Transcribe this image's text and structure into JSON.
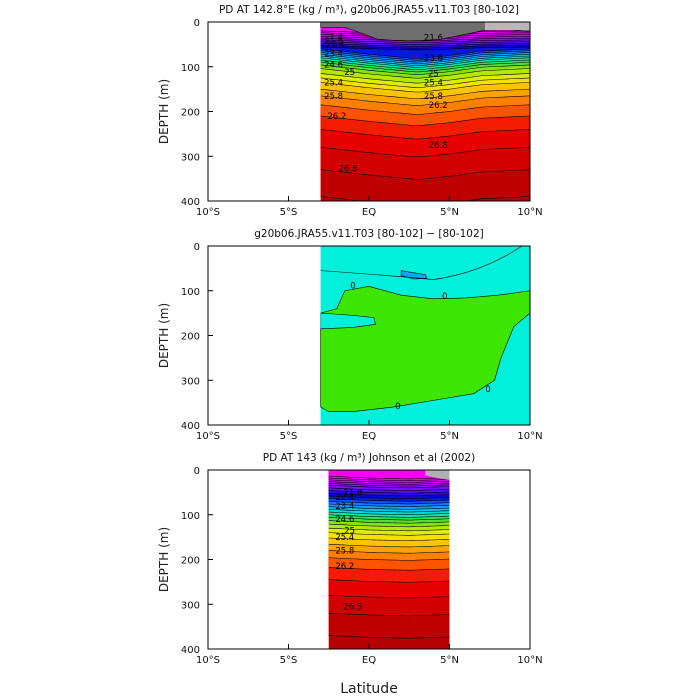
{
  "figure": {
    "xlabel": "Latitude"
  },
  "chart_data": [
    {
      "type": "contour",
      "title": "PD AT 142.8°E (kg / m³), g20b06.JRA55.v11.T03 [80-102]",
      "xlabel": "",
      "ylabel": "DEPTH (m)",
      "xlim": [
        -10,
        10
      ],
      "ylim": [
        400,
        0
      ],
      "x_ticks": [
        "10°S",
        "5°S",
        "EQ",
        "5°N",
        "10°N"
      ],
      "y_ticks": [
        "0",
        "100",
        "200",
        "300",
        "400"
      ],
      "data_extent_lat": [
        -3,
        10
      ],
      "levels": [
        21.0,
        21.2,
        21.4,
        21.6,
        21.8,
        22.0,
        22.2,
        22.4,
        22.6,
        22.8,
        23.0,
        23.2,
        23.4,
        23.6,
        23.8,
        24.0,
        24.2,
        24.4,
        24.6,
        24.8,
        25.0,
        25.2,
        25.4,
        25.6,
        25.8,
        26.0,
        26.2,
        26.4,
        26.6,
        26.8,
        27.0
      ],
      "level_depths_left": [
        20,
        24,
        28,
        32,
        36,
        40,
        44,
        48,
        52,
        56,
        60,
        64,
        68,
        72,
        76,
        80,
        85,
        90,
        96,
        104,
        115,
        125,
        135,
        150,
        165,
        185,
        210,
        240,
        280,
        330,
        390
      ],
      "dome_shift": {
        "lat": [
          -3,
          0,
          3,
          5,
          7,
          10
        ],
        "dz": [
          0,
          12,
          22,
          15,
          5,
          0
        ]
      },
      "contour_labels": [
        {
          "text": "21.4",
          "lat": -2.2,
          "depth": 35
        },
        {
          "text": "21.6",
          "lat": -2.2,
          "depth": 42
        },
        {
          "text": "22.4",
          "lat": -2.1,
          "depth": 50
        },
        {
          "text": "23.4",
          "lat": -2.2,
          "depth": 70
        },
        {
          "text": "24.6",
          "lat": -2.2,
          "depth": 95
        },
        {
          "text": "25",
          "lat": -1.2,
          "depth": 112
        },
        {
          "text": "25.4",
          "lat": -2.2,
          "depth": 135
        },
        {
          "text": "25.8",
          "lat": -2.2,
          "depth": 165
        },
        {
          "text": "26.2",
          "lat": -2.0,
          "depth": 210
        },
        {
          "text": "26.8",
          "lat": -1.3,
          "depth": 327
        },
        {
          "text": "21.6",
          "lat": 4.0,
          "depth": 35
        },
        {
          "text": "23.6",
          "lat": 4.0,
          "depth": 80
        },
        {
          "text": "25",
          "lat": 4.0,
          "depth": 115
        },
        {
          "text": "25.4",
          "lat": 4.0,
          "depth": 135
        },
        {
          "text": "25.8",
          "lat": 4.0,
          "depth": 165
        },
        {
          "text": "26.2",
          "lat": 4.3,
          "depth": 185
        },
        {
          "text": "26.8",
          "lat": 4.3,
          "depth": 275
        }
      ]
    },
    {
      "type": "contour",
      "title": "g20b06.JRA55.v11.T03 [80-102] −  [80-102]",
      "xlabel": "",
      "ylabel": "DEPTH (m)",
      "xlim": [
        -10,
        10
      ],
      "ylim": [
        400,
        0
      ],
      "x_ticks": [
        "10°S",
        "5°S",
        "EQ",
        "5°N",
        "10°N"
      ],
      "y_ticks": [
        "0",
        "100",
        "200",
        "300",
        "400"
      ],
      "data_extent_lat": [
        -3,
        10
      ],
      "background_color": "#00f0dc",
      "positive_color": "#3ce600",
      "negative_color": "#00a8f0",
      "contour_labels": [
        {
          "text": "0",
          "lat": -1.0,
          "depth": 88
        },
        {
          "text": "0",
          "lat": 4.7,
          "depth": 112
        },
        {
          "text": "0",
          "lat": 1.8,
          "depth": 358
        },
        {
          "text": "0",
          "lat": 7.4,
          "depth": 320
        }
      ]
    },
    {
      "type": "contour",
      "title": "PD AT 143 (kg / m³) Johnson et al (2002)",
      "xlabel": "",
      "ylabel": "DEPTH (m)",
      "xlim": [
        -10,
        10
      ],
      "ylim": [
        400,
        0
      ],
      "x_ticks": [
        "10°S",
        "5°S",
        "EQ",
        "5°N",
        "10°N"
      ],
      "y_ticks": [
        "0",
        "100",
        "200",
        "300",
        "400"
      ],
      "data_extent_lat": [
        -2.5,
        5
      ],
      "levels": [
        21.0,
        21.2,
        21.4,
        21.6,
        21.8,
        22.0,
        22.2,
        22.4,
        22.6,
        22.8,
        23.0,
        23.2,
        23.4,
        23.6,
        23.8,
        24.0,
        24.2,
        24.4,
        24.6,
        24.8,
        25.0,
        25.2,
        25.4,
        25.6,
        25.8,
        26.0,
        26.2,
        26.4,
        26.6,
        26.8,
        27.0
      ],
      "level_depths_left": [
        14,
        18,
        22,
        26,
        30,
        34,
        40,
        46,
        52,
        58,
        64,
        70,
        76,
        82,
        88,
        94,
        100,
        106,
        113,
        121,
        130,
        140,
        152,
        166,
        180,
        196,
        218,
        245,
        280,
        320,
        370
      ],
      "dome_shift": {
        "lat": [
          -2.5,
          0,
          2.5,
          5
        ],
        "dz": [
          0,
          4,
          6,
          3
        ]
      },
      "contour_labels": [
        {
          "text": "21.8",
          "lat": -1.0,
          "depth": 50
        },
        {
          "text": "22.4",
          "lat": -1.5,
          "depth": 60
        },
        {
          "text": "23.4",
          "lat": -1.5,
          "depth": 80
        },
        {
          "text": "24.6",
          "lat": -1.5,
          "depth": 110
        },
        {
          "text": "25",
          "lat": -1.2,
          "depth": 135
        },
        {
          "text": "25.4",
          "lat": -1.5,
          "depth": 150
        },
        {
          "text": "25.8",
          "lat": -1.5,
          "depth": 180
        },
        {
          "text": "26.2",
          "lat": -1.5,
          "depth": 215
        },
        {
          "text": "26.5",
          "lat": -1.0,
          "depth": 305
        }
      ]
    }
  ]
}
